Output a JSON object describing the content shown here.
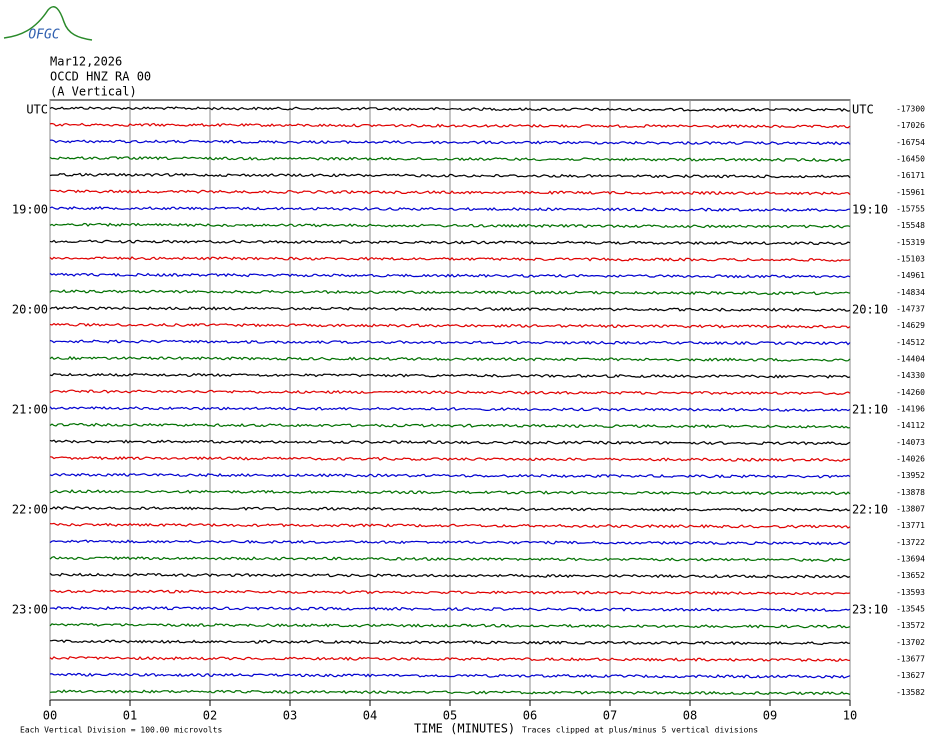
{
  "chart_data": {
    "type": "helicorder",
    "logo": "OFGC",
    "header": [
      "Mar12,2026",
      "OCCD HNZ RA 00",
      "(A Vertical)"
    ],
    "categories": [
      "UTC",
      null,
      null,
      null,
      null,
      null,
      "19:00",
      null,
      null,
      null,
      null,
      null,
      "20:00",
      null,
      null,
      null,
      null,
      null,
      "21:00",
      null,
      null,
      null,
      null,
      null,
      "22:00",
      null,
      null,
      null,
      null,
      null,
      "23:00",
      null,
      null,
      null,
      null,
      null
    ],
    "right_labels": [
      "UTC",
      null,
      null,
      null,
      null,
      null,
      "19:10",
      null,
      null,
      null,
      null,
      null,
      "20:10",
      null,
      null,
      null,
      null,
      null,
      "21:10",
      null,
      null,
      null,
      null,
      null,
      "22:10",
      null,
      null,
      null,
      null,
      null,
      "23:10",
      null,
      null,
      null,
      null,
      null
    ],
    "values": [
      -17300,
      -17026,
      -16754,
      -16450,
      -16171,
      -15961,
      -15755,
      -15548,
      -15319,
      -15103,
      -14961,
      -14834,
      -14737,
      -14629,
      -14512,
      -14404,
      -14330,
      -14260,
      -14196,
      -14112,
      -14073,
      -14026,
      -13952,
      -13878,
      -13807,
      -13771,
      -13722,
      -13694,
      -13652,
      -13593,
      -13545,
      -13572,
      -13702,
      -13677,
      -13627,
      -13582
    ],
    "colors": [
      "#000000",
      "#e00000",
      "#0000d0",
      "#007000"
    ],
    "xlim": [
      0,
      10
    ],
    "xticks": [
      {
        "value": 0,
        "label": "00"
      },
      {
        "value": 1,
        "label": "01"
      },
      {
        "value": 2,
        "label": "02"
      },
      {
        "value": 3,
        "label": "03"
      },
      {
        "value": 4,
        "label": "04"
      },
      {
        "value": 5,
        "label": "05"
      },
      {
        "value": 6,
        "label": "06"
      },
      {
        "value": 7,
        "label": "07"
      },
      {
        "value": 8,
        "label": "08"
      },
      {
        "value": 9,
        "label": "09"
      },
      {
        "value": 10,
        "label": "10"
      }
    ],
    "x_label": "TIME (MINUTES)",
    "notes": [
      "Each Vertical Division =  100.00 microvolts",
      "Traces clipped at plus/minus 5 vertical divisions"
    ],
    "grid": true
  }
}
